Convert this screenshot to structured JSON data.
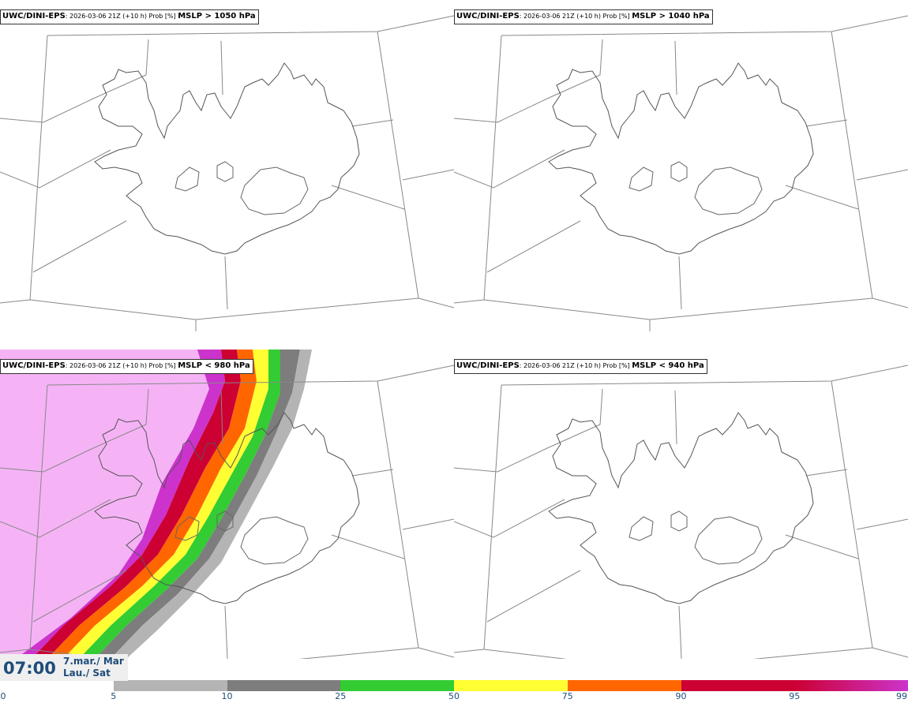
{
  "panels": [
    {
      "model": "UWC/DINI-EPS",
      "meta": ": 2026-03-06 21Z (+10 h) Prob [%] ",
      "param": "MSLP > 1050 hPa"
    },
    {
      "model": "UWC/DINI-EPS",
      "meta": ": 2026-03-06 21Z (+10 h) Prob [%] ",
      "param": "MSLP > 1040 hPa"
    },
    {
      "model": "UWC/DINI-EPS",
      "meta": ": 2026-03-06 21Z (+10 h) Prob [%] ",
      "param": "MSLP < 980 hPa"
    },
    {
      "model": "UWC/DINI-EPS",
      "meta": ": 2026-03-06 21Z (+10 h) Prob [%] ",
      "param": "MSLP < 940 hPa"
    }
  ],
  "valid_time": {
    "time": "07:00",
    "date_line1": "7.mar./ Mar",
    "date_line2": "Lau./ Sat"
  },
  "colorbar": {
    "ticks": [
      "0",
      "5",
      "10",
      "25",
      "50",
      "75",
      "90",
      "95",
      "99"
    ],
    "colors": [
      "#ffffff",
      "#b4b4b4",
      "#7d7d7d",
      "#33cc33",
      "#ffff33",
      "#ff6600",
      "#cc0033",
      "#cc33cc",
      "#f5b3f5"
    ]
  }
}
